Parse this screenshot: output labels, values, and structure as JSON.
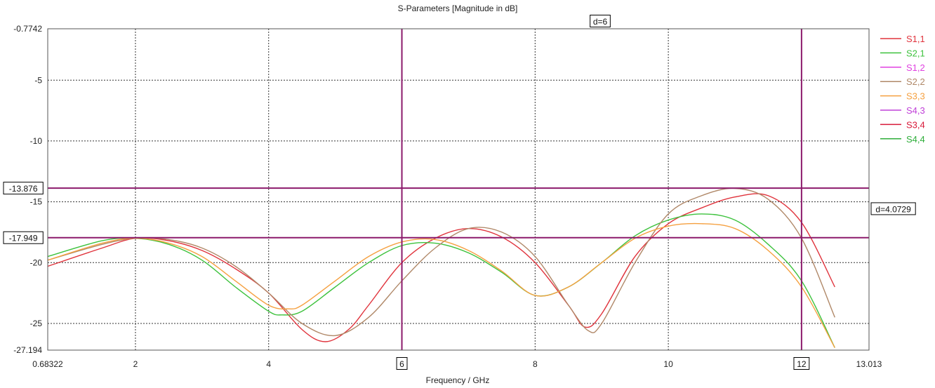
{
  "chart_data": {
    "type": "line",
    "title": "S-Parameters [Magnitude in dB]",
    "xlabel": "Frequency / GHz",
    "ylabel": "",
    "xlim": [
      0.68322,
      13.013
    ],
    "ylim": [
      -27.194,
      -0.7742
    ],
    "x_ticks": [
      "0.68322",
      "2",
      "4",
      "6",
      "8",
      "10",
      "12",
      "13.013"
    ],
    "y_ticks": [
      "-0.7742",
      "-5",
      "-10",
      "-15",
      "-20",
      "-25",
      "-27.194"
    ],
    "grid": true,
    "legend_position": "right",
    "markers": {
      "vertical": [
        {
          "x": 6,
          "label": "6"
        },
        {
          "x": 12,
          "label": "12"
        }
      ],
      "horizontal": [
        {
          "y": -13.876,
          "label": "-13.876"
        },
        {
          "y": -17.949,
          "label": "-17.949"
        }
      ],
      "marker_color": "#8B1A6B",
      "vertical_delta_label": "d=6",
      "horizontal_delta_label": "d=4.0729"
    },
    "series": [
      {
        "name": "S1,1",
        "color": "#E0333C",
        "x": [
          0.68322,
          1.5,
          2.0,
          2.5,
          3.0,
          3.5,
          4.0,
          4.5,
          4.85,
          5.2,
          5.5,
          6.0,
          6.5,
          7.0,
          7.5,
          8.0,
          8.5,
          8.75,
          9.0,
          9.5,
          10.0,
          10.5,
          11.0,
          11.5,
          12.0,
          12.5
        ],
        "values": [
          -20.3,
          -18.8,
          -18.0,
          -18.2,
          -19.0,
          -20.5,
          -22.5,
          -25.5,
          -26.5,
          -25.5,
          -23.5,
          -20.0,
          -18.0,
          -17.2,
          -17.9,
          -20.0,
          -23.5,
          -25.3,
          -24.2,
          -19.5,
          -16.8,
          -15.5,
          -14.6,
          -14.5,
          -16.7,
          -22.0
        ]
      },
      {
        "name": "S2,1",
        "color": "#3DC23D",
        "x": [
          0.68322,
          1.5,
          2.0,
          2.5,
          3.0,
          3.5,
          4.0,
          4.2,
          4.5,
          5.0,
          5.5,
          6.0,
          6.5,
          7.0,
          7.5,
          8.0,
          8.5,
          9.0,
          9.5,
          10.0,
          10.5,
          11.0,
          11.5,
          12.0,
          12.5
        ],
        "values": [
          -19.5,
          -18.2,
          -18.0,
          -18.5,
          -19.8,
          -22.0,
          -24.0,
          -24.3,
          -24.0,
          -22.0,
          -20.0,
          -18.6,
          -18.4,
          -19.2,
          -20.8,
          -22.7,
          -22.0,
          -20.0,
          -17.8,
          -16.5,
          -16.0,
          -16.5,
          -18.5,
          -21.5,
          -27.0
        ]
      },
      {
        "name": "S1,2",
        "color": "#E040E0",
        "x": [],
        "values": []
      },
      {
        "name": "S2,2",
        "color": "#B08868",
        "x": [
          0.68322,
          1.5,
          2.0,
          2.5,
          3.0,
          3.5,
          4.0,
          4.5,
          5.0,
          5.5,
          6.0,
          6.5,
          7.0,
          7.5,
          8.0,
          8.5,
          8.8,
          9.0,
          9.5,
          10.0,
          10.5,
          11.0,
          11.5,
          12.0,
          12.5
        ],
        "values": [
          -19.8,
          -18.5,
          -18.0,
          -18.1,
          -18.8,
          -20.3,
          -22.5,
          -25.0,
          -26.0,
          -24.5,
          -21.5,
          -18.8,
          -17.2,
          -17.5,
          -19.5,
          -23.5,
          -25.6,
          -25.0,
          -20.0,
          -16.0,
          -14.5,
          -13.9,
          -14.8,
          -18.0,
          -24.5
        ]
      },
      {
        "name": "S3,3",
        "color": "#F5A040",
        "x": [
          0.68322,
          1.5,
          2.0,
          2.5,
          3.0,
          3.5,
          4.0,
          4.3,
          4.5,
          5.0,
          5.5,
          6.0,
          6.5,
          7.0,
          7.5,
          8.0,
          8.5,
          9.0,
          9.5,
          10.0,
          10.5,
          11.0,
          11.5,
          12.0,
          12.5
        ],
        "values": [
          -19.8,
          -18.4,
          -18.0,
          -18.4,
          -19.5,
          -21.5,
          -23.5,
          -23.8,
          -23.5,
          -21.5,
          -19.5,
          -18.3,
          -18.1,
          -19.0,
          -20.7,
          -22.7,
          -22.0,
          -20.0,
          -18.0,
          -17.0,
          -16.8,
          -17.2,
          -19.0,
          -22.0,
          -27.0
        ]
      },
      {
        "name": "S4,3",
        "color": "#C040D8",
        "x": [],
        "values": []
      },
      {
        "name": "S3,4",
        "color": "#D81838",
        "x": [],
        "values": []
      },
      {
        "name": "S4,4",
        "color": "#2EAE3A",
        "x": [],
        "values": []
      }
    ]
  }
}
